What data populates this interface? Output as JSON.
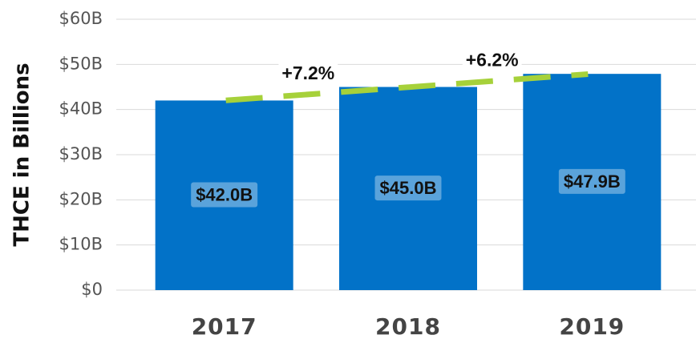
{
  "chart_data": {
    "type": "bar",
    "y_label": "THCE in Billions",
    "categories": [
      "2017",
      "2018",
      "2019"
    ],
    "values": [
      42.0,
      45.0,
      47.9
    ],
    "value_labels": [
      "$42.0B",
      "$45.0B",
      "$47.9B"
    ],
    "color": "#0272c8",
    "trend_color": "#a6d13a",
    "annotations": [
      "+7.2%",
      "+6.2%"
    ],
    "ylim": [
      0,
      60
    ],
    "yticks": [
      {
        "value": 0,
        "label": "$0"
      },
      {
        "value": 10,
        "label": "$10B"
      },
      {
        "value": 20,
        "label": "$20B"
      },
      {
        "value": 30,
        "label": "$30B"
      },
      {
        "value": 40,
        "label": "$40B"
      },
      {
        "value": 50,
        "label": "$50B"
      },
      {
        "value": 60,
        "label": "$60B"
      }
    ],
    "grid": true
  }
}
